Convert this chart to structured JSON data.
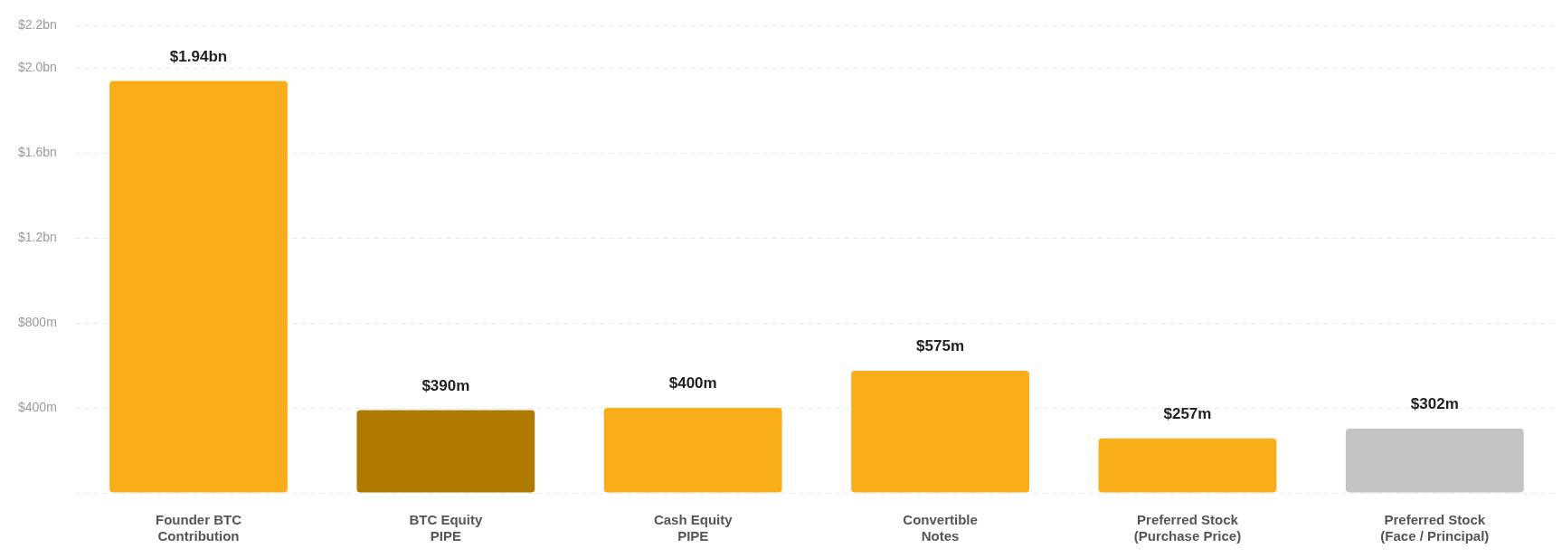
{
  "chart_data": {
    "type": "bar",
    "categories": [
      "Founder BTC\nContribution",
      "BTC Equity\nPIPE",
      "Cash Equity\nPIPE",
      "Convertible\nNotes",
      "Preferred Stock\n(Purchase Price)",
      "Preferred Stock\n(Face / Principal)"
    ],
    "values": [
      1940000000,
      390000000,
      400000000,
      575000000,
      257000000,
      302000000
    ],
    "colors": [
      "#f9ae19",
      "#b07a00",
      "#f9ae19",
      "#f9ae19",
      "#f9ae19",
      "#c4c4c4"
    ],
    "value_labels": [
      "$1.94bn",
      "$390m",
      "$400m",
      "$575m",
      "$257m",
      "$302m"
    ],
    "ylim": [
      0,
      2200000000
    ],
    "yticks": [
      {
        "value": 0,
        "label": null
      },
      {
        "value": 400000000,
        "label": "$400m"
      },
      {
        "value": 800000000,
        "label": "$800m"
      },
      {
        "value": 1200000000,
        "label": "$1.2bn"
      },
      {
        "value": 1600000000,
        "label": "$1.6bn"
      },
      {
        "value": 2000000000,
        "label": "$2.0bn"
      },
      {
        "value": 2200000000,
        "label": "$2.2bn"
      }
    ],
    "grid": "y",
    "legend": false
  }
}
